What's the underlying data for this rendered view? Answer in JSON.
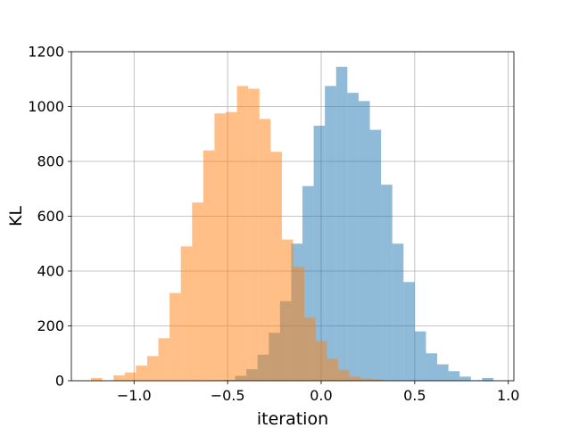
{
  "chart_data": {
    "type": "histogram",
    "title": "",
    "xlabel": "iteration",
    "ylabel": "KL",
    "xlim": [
      -1.335,
      1.03
    ],
    "ylim": [
      0,
      1200
    ],
    "xticks": [
      -1.0,
      -0.5,
      0.0,
      0.5,
      1.0
    ],
    "xtick_labels": [
      "−1.0",
      "−0.5",
      "0.0",
      "0.5",
      "1.0"
    ],
    "yticks": [
      0,
      200,
      400,
      600,
      800,
      1000,
      1200
    ],
    "ytick_labels": [
      "0",
      "200",
      "400",
      "600",
      "800",
      "1000",
      "1200"
    ],
    "grid": true,
    "series": [
      {
        "color": "#1f77b4",
        "alpha": 0.5,
        "bins": [
          {
            "x0": -0.7,
            "x1": -0.64,
            "count": 1
          },
          {
            "x0": -0.64,
            "x1": -0.58,
            "count": 1
          },
          {
            "x0": -0.58,
            "x1": -0.52,
            "count": 2
          },
          {
            "x0": -0.52,
            "x1": -0.46,
            "count": 3
          },
          {
            "x0": -0.46,
            "x1": -0.4,
            "count": 18
          },
          {
            "x0": -0.4,
            "x1": -0.34,
            "count": 42
          },
          {
            "x0": -0.34,
            "x1": -0.28,
            "count": 95
          },
          {
            "x0": -0.28,
            "x1": -0.22,
            "count": 175
          },
          {
            "x0": -0.22,
            "x1": -0.16,
            "count": 290
          },
          {
            "x0": -0.16,
            "x1": -0.1,
            "count": 500
          },
          {
            "x0": -0.1,
            "x1": -0.04,
            "count": 710
          },
          {
            "x0": -0.04,
            "x1": 0.02,
            "count": 930
          },
          {
            "x0": 0.02,
            "x1": 0.08,
            "count": 1075
          },
          {
            "x0": 0.08,
            "x1": 0.14,
            "count": 1145
          },
          {
            "x0": 0.14,
            "x1": 0.2,
            "count": 1050
          },
          {
            "x0": 0.2,
            "x1": 0.26,
            "count": 1020
          },
          {
            "x0": 0.26,
            "x1": 0.32,
            "count": 915
          },
          {
            "x0": 0.32,
            "x1": 0.38,
            "count": 715
          },
          {
            "x0": 0.38,
            "x1": 0.44,
            "count": 500
          },
          {
            "x0": 0.44,
            "x1": 0.5,
            "count": 360
          },
          {
            "x0": 0.5,
            "x1": 0.56,
            "count": 180
          },
          {
            "x0": 0.56,
            "x1": 0.62,
            "count": 100
          },
          {
            "x0": 0.62,
            "x1": 0.68,
            "count": 60
          },
          {
            "x0": 0.68,
            "x1": 0.74,
            "count": 35
          },
          {
            "x0": 0.74,
            "x1": 0.8,
            "count": 15
          },
          {
            "x0": 0.8,
            "x1": 0.86,
            "count": 2
          },
          {
            "x0": 0.86,
            "x1": 0.92,
            "count": 10
          }
        ]
      },
      {
        "color": "#ff7f0e",
        "alpha": 0.5,
        "bins": [
          {
            "x0": -1.23,
            "x1": -1.17,
            "count": 10
          },
          {
            "x0": -1.17,
            "x1": -1.11,
            "count": 0
          },
          {
            "x0": -1.11,
            "x1": -1.05,
            "count": 20
          },
          {
            "x0": -1.05,
            "x1": -0.99,
            "count": 30
          },
          {
            "x0": -0.99,
            "x1": -0.93,
            "count": 55
          },
          {
            "x0": -0.93,
            "x1": -0.87,
            "count": 90
          },
          {
            "x0": -0.87,
            "x1": -0.81,
            "count": 155
          },
          {
            "x0": -0.81,
            "x1": -0.75,
            "count": 320
          },
          {
            "x0": -0.75,
            "x1": -0.69,
            "count": 490
          },
          {
            "x0": -0.69,
            "x1": -0.63,
            "count": 650
          },
          {
            "x0": -0.63,
            "x1": -0.57,
            "count": 840
          },
          {
            "x0": -0.57,
            "x1": -0.51,
            "count": 975
          },
          {
            "x0": -0.51,
            "x1": -0.45,
            "count": 980
          },
          {
            "x0": -0.45,
            "x1": -0.39,
            "count": 1075
          },
          {
            "x0": -0.39,
            "x1": -0.33,
            "count": 1065
          },
          {
            "x0": -0.33,
            "x1": -0.27,
            "count": 955
          },
          {
            "x0": -0.27,
            "x1": -0.21,
            "count": 835
          },
          {
            "x0": -0.21,
            "x1": -0.15,
            "count": 515
          },
          {
            "x0": -0.15,
            "x1": -0.09,
            "count": 415
          },
          {
            "x0": -0.09,
            "x1": -0.03,
            "count": 230
          },
          {
            "x0": -0.03,
            "x1": 0.03,
            "count": 145
          },
          {
            "x0": 0.03,
            "x1": 0.09,
            "count": 80
          },
          {
            "x0": 0.09,
            "x1": 0.15,
            "count": 40
          },
          {
            "x0": 0.15,
            "x1": 0.21,
            "count": 15
          },
          {
            "x0": 0.21,
            "x1": 0.27,
            "count": 8
          },
          {
            "x0": 0.27,
            "x1": 0.33,
            "count": 5
          }
        ]
      }
    ]
  }
}
